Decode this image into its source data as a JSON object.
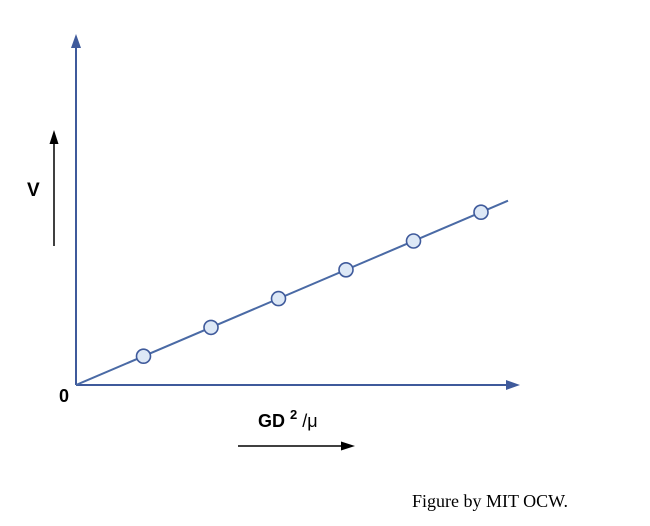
{
  "chart_data": {
    "type": "scatter",
    "title": "",
    "ylabel": "V",
    "xlabel_main": "GD",
    "xlabel_superscript": "2",
    "xlabel_suffix": "/μ",
    "origin_label": "0",
    "x": [
      1,
      2,
      3,
      4,
      5,
      6
    ],
    "y": [
      1,
      2,
      3,
      4,
      5,
      6
    ],
    "fit_line": {
      "from": [
        0,
        0
      ],
      "to": [
        6.4,
        6.4
      ]
    },
    "xlim": [
      0,
      6.4
    ],
    "ylim": [
      0,
      6.4
    ],
    "grid": false,
    "colors": {
      "axis": "#3f5a9b",
      "line": "#4a6aa5",
      "point_fill": "#dde8f6",
      "point_stroke": "#3f5a9b",
      "label_arrow": "#000000"
    }
  },
  "credit": "Figure by MIT OCW."
}
